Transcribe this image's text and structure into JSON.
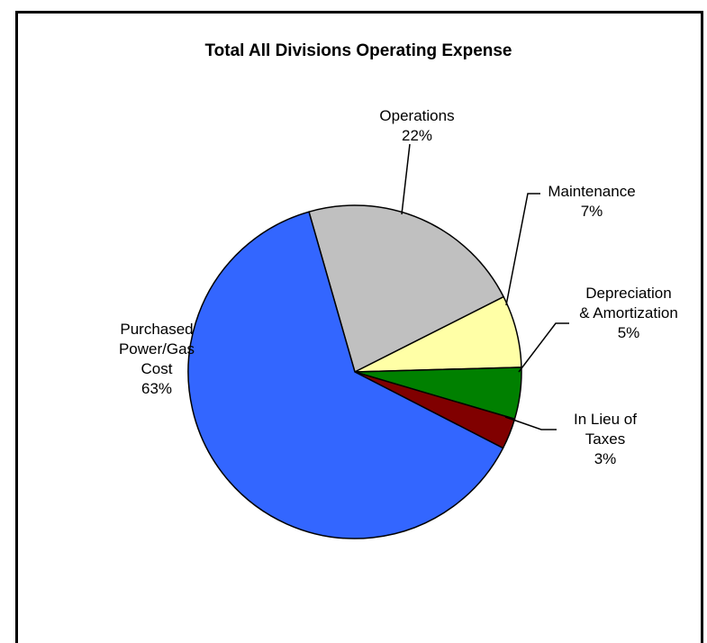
{
  "chart_data": {
    "type": "pie",
    "title": "Total All Divisions Operating Expense",
    "slices": [
      {
        "label_lines": [
          "Operations",
          "22%"
        ],
        "value": 22,
        "color": "#C0C0C0"
      },
      {
        "label_lines": [
          "Maintenance",
          "7%"
        ],
        "value": 7,
        "color": "#FFFFA6"
      },
      {
        "label_lines": [
          "Depreciation",
          "& Amortization",
          "5%"
        ],
        "value": 5,
        "color": "#008000"
      },
      {
        "label_lines": [
          "In Lieu of",
          "Taxes",
          "3%"
        ],
        "value": 3,
        "color": "#800000"
      },
      {
        "label_lines": [
          "Purchased",
          "Power/Gas",
          "Cost",
          "63%"
        ],
        "value": 63,
        "color": "#3366FF"
      }
    ],
    "legend": "none"
  }
}
